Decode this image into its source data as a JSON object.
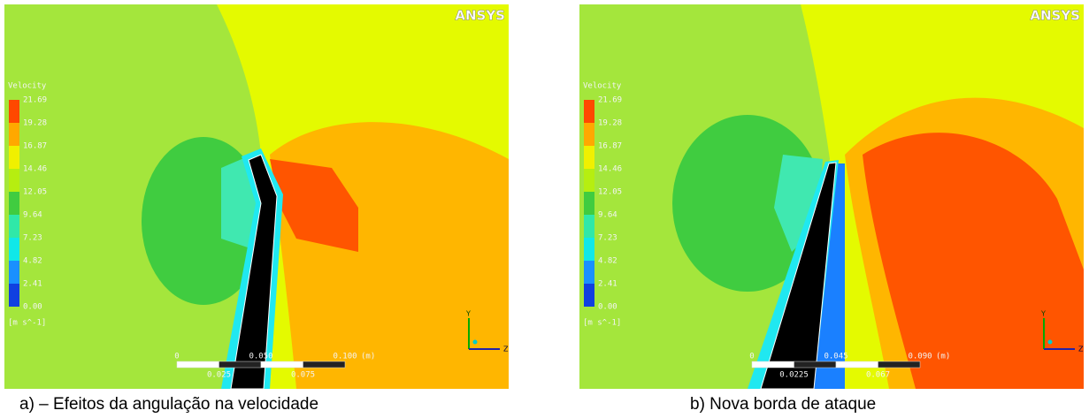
{
  "panels": [
    {
      "logo": "ANSYS",
      "legend": {
        "title": "Velocity",
        "levels": [
          "21.69",
          "19.28",
          "16.87",
          "14.46",
          "12.05",
          "9.64",
          "7.23",
          "4.82",
          "2.41",
          "0.00"
        ],
        "unit": "[m s^-1]"
      },
      "scale": {
        "top": [
          "0",
          "0.050",
          "0.100"
        ],
        "unit": "(m)",
        "bottom": [
          "0.025",
          "0.075"
        ]
      },
      "axes": {
        "y": "Y",
        "z": "Z"
      },
      "caption": "a) – Efeitos da angulação na velocidade"
    },
    {
      "logo": "ANSYS",
      "legend": {
        "title": "Velocity",
        "levels": [
          "21.69",
          "19.28",
          "16.87",
          "14.46",
          "12.05",
          "9.64",
          "7.23",
          "4.82",
          "2.41",
          "0.00"
        ],
        "unit": "[m s^-1]"
      },
      "scale": {
        "top": [
          "0",
          "0.045",
          "0.090"
        ],
        "unit": "(m)",
        "bottom": [
          "0.0225",
          "0.067"
        ]
      },
      "axes": {
        "y": "Y",
        "z": "Z"
      },
      "caption": "b)  Nova borda de ataque"
    }
  ]
}
